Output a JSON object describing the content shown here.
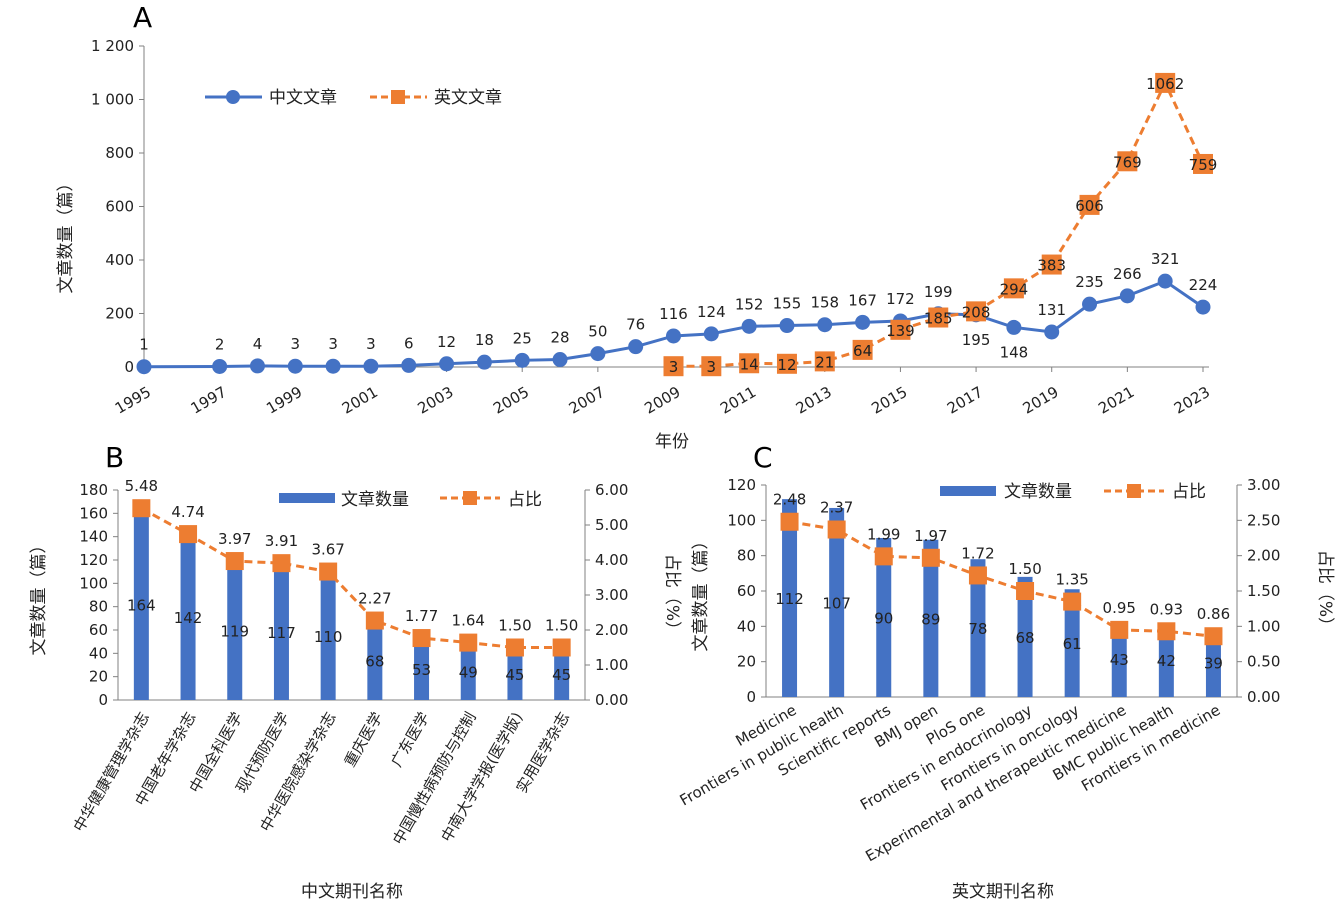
{
  "colors": {
    "blue": "#4472C4",
    "orange": "#ED7D31",
    "axis": "#808080",
    "text": "#222222"
  },
  "panelA": {
    "letter": "A",
    "ylabel": "文章数量（篇）",
    "xlabel": "年份",
    "yticks": [
      "0",
      "200",
      "400",
      "600",
      "800",
      "1 000",
      "1 200"
    ],
    "xticks": [
      "1995",
      "1997",
      "1999",
      "2001",
      "2003",
      "2005",
      "2007",
      "2009",
      "2011",
      "2013",
      "2015",
      "2017",
      "2019",
      "2021",
      "2023"
    ],
    "legend": [
      "中文文章",
      "英文文章"
    ]
  },
  "panelB": {
    "letter": "B",
    "ylabel_left": "文章数量（篇）",
    "ylabel_right": "占比（%）",
    "xlabel": "中文期刊名称",
    "yticks_left": [
      "0",
      "20",
      "40",
      "60",
      "80",
      "100",
      "120",
      "140",
      "160",
      "180"
    ],
    "yticks_right": [
      "0.00",
      "1.00",
      "2.00",
      "3.00",
      "4.00",
      "5.00",
      "6.00"
    ],
    "legend": [
      "文章数量",
      "占比"
    ]
  },
  "panelC": {
    "letter": "C",
    "ylabel_left": "文章数量（篇）",
    "ylabel_right": "占比（%）",
    "xlabel": "英文期刊名称",
    "yticks_left": [
      "0",
      "20",
      "40",
      "60",
      "80",
      "100",
      "120"
    ],
    "yticks_right": [
      "0.00",
      "0.50",
      "1.00",
      "1.50",
      "2.00",
      "2.50",
      "3.00"
    ],
    "legend": [
      "文章数量",
      "占比"
    ]
  },
  "chart_data": [
    {
      "panel": "A",
      "type": "line",
      "x": [
        1995,
        1997,
        1998,
        1999,
        2000,
        2001,
        2002,
        2003,
        2004,
        2005,
        2006,
        2007,
        2008,
        2009,
        2010,
        2011,
        2012,
        2013,
        2014,
        2015,
        2016,
        2017,
        2018,
        2019,
        2020,
        2021,
        2022,
        2023
      ],
      "series": [
        {
          "name": "中文文章",
          "values": [
            1,
            2,
            4,
            3,
            3,
            3,
            6,
            12,
            18,
            25,
            28,
            50,
            76,
            116,
            124,
            152,
            155,
            158,
            167,
            172,
            199,
            195,
            148,
            131,
            235,
            266,
            321,
            224
          ]
        },
        {
          "name": "英文文章",
          "values": [
            null,
            null,
            null,
            null,
            null,
            null,
            null,
            null,
            null,
            null,
            null,
            null,
            null,
            3,
            3,
            14,
            12,
            21,
            64,
            139,
            185,
            208,
            294,
            383,
            606,
            769,
            1062,
            759
          ]
        }
      ],
      "xlabel": "年份",
      "ylabel": "文章数量（篇）",
      "ylim": [
        0,
        1200
      ]
    },
    {
      "panel": "B",
      "type": "bar",
      "categories": [
        "中华健康管理学杂志",
        "中国老年学杂志",
        "中国全科医学",
        "现代预防医学",
        "中华医院感染学杂志",
        "重庆医学",
        "广东医学",
        "中国慢性病预防与控制",
        "中南大学学报(医学版)",
        "实用医学杂志"
      ],
      "series": [
        {
          "name": "文章数量",
          "values": [
            164,
            142,
            119,
            117,
            110,
            68,
            53,
            49,
            45,
            45
          ]
        },
        {
          "name": "占比",
          "values": [
            5.48,
            4.74,
            3.97,
            3.91,
            3.67,
            2.27,
            1.77,
            1.64,
            1.5,
            1.5
          ]
        }
      ],
      "xlabel": "中文期刊名称",
      "ylabel": "文章数量（篇）",
      "ylabel_right": "占比（%）",
      "ylim": [
        0,
        180
      ],
      "ylim_right": [
        0,
        6
      ]
    },
    {
      "panel": "C",
      "type": "bar",
      "categories": [
        "Medicine",
        "Frontiers in public health",
        "Scientific reports",
        "BMJ open",
        "PloS one",
        "Frontiers in endocrinology",
        "Frontiers in oncology",
        "Experimental and therapeutic medicine",
        "BMC public health",
        "Frontiers in medicine"
      ],
      "series": [
        {
          "name": "文章数量",
          "values": [
            112,
            107,
            90,
            89,
            78,
            68,
            61,
            43,
            42,
            39
          ]
        },
        {
          "name": "占比",
          "values": [
            2.48,
            2.37,
            1.99,
            1.97,
            1.72,
            1.5,
            1.35,
            0.95,
            0.93,
            0.86
          ]
        }
      ],
      "xlabel": "英文期刊名称",
      "ylabel": "文章数量（篇）",
      "ylabel_right": "占比（%）",
      "ylim": [
        0,
        120
      ],
      "ylim_right": [
        0,
        3
      ]
    }
  ]
}
